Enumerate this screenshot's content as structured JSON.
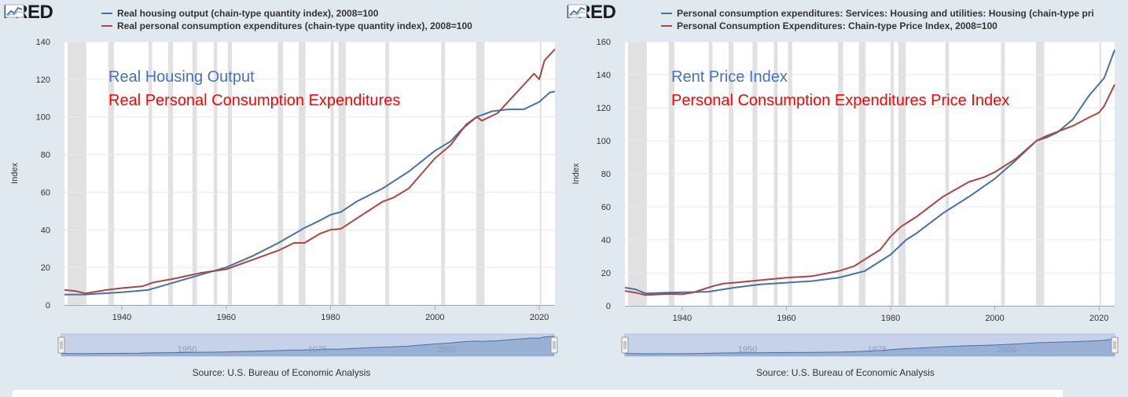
{
  "logo_text": "FRED",
  "colors": {
    "blue": "#4572a7",
    "red": "#aa4643",
    "recession": "#e1e1e1",
    "annot_blue": "#4472c4",
    "annot_red": "#ff0000"
  },
  "left": {
    "legend": [
      "Real housing output (chain-type quantity index), 2008=100",
      "Real personal consumption expenditures (chain-type quantity index), 2008=100"
    ],
    "annotations": [
      "Real Housing Output",
      "Real Personal Consumption Expenditures"
    ],
    "source": "Source: U.S. Bureau of Economic Analysis",
    "navigator_labels": [
      "1950",
      "1975",
      "2000"
    ]
  },
  "right": {
    "legend": [
      "Personal consumption expenditures: Services: Housing and utilities: Housing (chain-type pri",
      "Personal Consumption Expenditures: Chain-type Price Index, 2008=100"
    ],
    "annotations": [
      "Rent Price Index",
      "Personal Consumption Expenditures Price Index"
    ],
    "source": "Source: U.S. Bureau of Economic Analysis",
    "navigator_labels": [
      "1950",
      "1975",
      "2000"
    ]
  },
  "chart_data": [
    {
      "type": "line",
      "ylabel": "Index",
      "xlim": [
        1929,
        2023
      ],
      "ylim": [
        0,
        140
      ],
      "yticks": [
        0,
        20,
        40,
        60,
        80,
        100,
        120,
        140
      ],
      "xticks": [
        1940,
        1960,
        1980,
        2000,
        2020
      ],
      "grid": true,
      "series": [
        {
          "name": "Real housing output (chain-type quantity index), 2008=100",
          "color": "#4572a7",
          "points": [
            [
              1929,
              5.5
            ],
            [
              1933,
              5.6
            ],
            [
              1940,
              6.8
            ],
            [
              1945,
              8
            ],
            [
              1950,
              12
            ],
            [
              1955,
              16
            ],
            [
              1960,
              20
            ],
            [
              1965,
              26
            ],
            [
              1970,
              33
            ],
            [
              1975,
              41
            ],
            [
              1978,
              45
            ],
            [
              1980,
              48
            ],
            [
              1982,
              49.5
            ],
            [
              1985,
              55
            ],
            [
              1990,
              62
            ],
            [
              1995,
              71
            ],
            [
              2000,
              82
            ],
            [
              2003,
              87
            ],
            [
              2005,
              93
            ],
            [
              2008,
              100
            ],
            [
              2011,
              103
            ],
            [
              2014,
              104
            ],
            [
              2017,
              104
            ],
            [
              2020,
              108
            ],
            [
              2022,
              113
            ],
            [
              2023,
              113.5
            ]
          ]
        },
        {
          "name": "Real personal consumption expenditures (chain-type quantity index), 2008=100",
          "color": "#aa4643",
          "points": [
            [
              1929,
              8
            ],
            [
              1931,
              7.5
            ],
            [
              1933,
              6.2
            ],
            [
              1937,
              8
            ],
            [
              1940,
              9
            ],
            [
              1944,
              10
            ],
            [
              1946,
              12
            ],
            [
              1950,
              14
            ],
            [
              1955,
              17
            ],
            [
              1960,
              19
            ],
            [
              1965,
              24
            ],
            [
              1970,
              29
            ],
            [
              1973,
              33
            ],
            [
              1975,
              33
            ],
            [
              1978,
              38
            ],
            [
              1980,
              40
            ],
            [
              1982,
              40.5
            ],
            [
              1985,
              46
            ],
            [
              1990,
              55
            ],
            [
              1992,
              57
            ],
            [
              1995,
              62
            ],
            [
              2000,
              78
            ],
            [
              2003,
              85
            ],
            [
              2006,
              96
            ],
            [
              2008,
              100
            ],
            [
              2009,
              98
            ],
            [
              2012,
              102
            ],
            [
              2015,
              111
            ],
            [
              2019,
              123
            ],
            [
              2020,
              120
            ],
            [
              2021,
              130
            ],
            [
              2023,
              136
            ]
          ]
        }
      ],
      "recessions": [
        [
          1929.6,
          1933.2
        ],
        [
          1937.4,
          1938.5
        ],
        [
          1945.1,
          1945.8
        ],
        [
          1948.9,
          1949.8
        ],
        [
          1953.5,
          1954.4
        ],
        [
          1957.6,
          1958.3
        ],
        [
          1960.3,
          1961.1
        ],
        [
          1969.9,
          1970.9
        ],
        [
          1973.9,
          1975.2
        ],
        [
          1980.0,
          1980.6
        ],
        [
          1981.5,
          1982.9
        ],
        [
          1990.5,
          1991.2
        ],
        [
          2001.2,
          2001.9
        ],
        [
          2007.9,
          2009.5
        ],
        [
          2020.1,
          2020.4
        ]
      ]
    },
    {
      "type": "line",
      "ylabel": "Index",
      "xlim": [
        1929,
        2023
      ],
      "ylim": [
        0,
        160
      ],
      "yticks": [
        0,
        20,
        40,
        60,
        80,
        100,
        120,
        140,
        160
      ],
      "xticks": [
        1940,
        1960,
        1980,
        2000,
        2020
      ],
      "grid": true,
      "series": [
        {
          "name": "Personal consumption expenditures: Services: Housing and utilities: Housing (chain-type pri",
          "color": "#4572a7",
          "points": [
            [
              1929,
              11
            ],
            [
              1931,
              10
            ],
            [
              1933,
              7.5
            ],
            [
              1937,
              8
            ],
            [
              1945,
              8.5
            ],
            [
              1950,
              11
            ],
            [
              1955,
              13
            ],
            [
              1960,
              14
            ],
            [
              1965,
              15
            ],
            [
              1970,
              17
            ],
            [
              1975,
              21
            ],
            [
              1980,
              31
            ],
            [
              1983,
              40
            ],
            [
              1985,
              44
            ],
            [
              1990,
              56
            ],
            [
              1995,
              66
            ],
            [
              2000,
              77
            ],
            [
              2004,
              88
            ],
            [
              2008,
              100
            ],
            [
              2010,
              102
            ],
            [
              2012,
              105
            ],
            [
              2015,
              113
            ],
            [
              2018,
              127
            ],
            [
              2021,
              138
            ],
            [
              2023,
              155
            ]
          ]
        },
        {
          "name": "Personal Consumption Expenditures: Chain-type Price Index, 2008=100",
          "color": "#aa4643",
          "points": [
            [
              1929,
              9
            ],
            [
              1931,
              8
            ],
            [
              1933,
              6.5
            ],
            [
              1937,
              7.2
            ],
            [
              1940,
              7
            ],
            [
              1942,
              8
            ],
            [
              1944,
              10
            ],
            [
              1946,
              12
            ],
            [
              1948,
              13.5
            ],
            [
              1950,
              14
            ],
            [
              1955,
              15.5
            ],
            [
              1960,
              17
            ],
            [
              1965,
              18
            ],
            [
              1970,
              21
            ],
            [
              1973,
              24
            ],
            [
              1975,
              28
            ],
            [
              1978,
              34
            ],
            [
              1980,
              42
            ],
            [
              1982,
              48
            ],
            [
              1985,
              54
            ],
            [
              1990,
              66
            ],
            [
              1995,
              75
            ],
            [
              1998,
              78
            ],
            [
              2000,
              81
            ],
            [
              2004,
              89
            ],
            [
              2008,
              100
            ],
            [
              2010,
              103
            ],
            [
              2015,
              109
            ],
            [
              2018,
              114
            ],
            [
              2020,
              117
            ],
            [
              2021,
              121
            ],
            [
              2023,
              134
            ]
          ]
        }
      ],
      "recessions": [
        [
          1929.6,
          1933.2
        ],
        [
          1937.4,
          1938.5
        ],
        [
          1945.1,
          1945.8
        ],
        [
          1948.9,
          1949.8
        ],
        [
          1953.5,
          1954.4
        ],
        [
          1957.6,
          1958.3
        ],
        [
          1960.3,
          1961.1
        ],
        [
          1969.9,
          1970.9
        ],
        [
          1973.9,
          1975.2
        ],
        [
          1980.0,
          1980.6
        ],
        [
          1981.5,
          1982.9
        ],
        [
          1990.5,
          1991.2
        ],
        [
          2001.2,
          2001.9
        ],
        [
          2007.9,
          2009.5
        ],
        [
          2020.1,
          2020.4
        ]
      ]
    }
  ]
}
